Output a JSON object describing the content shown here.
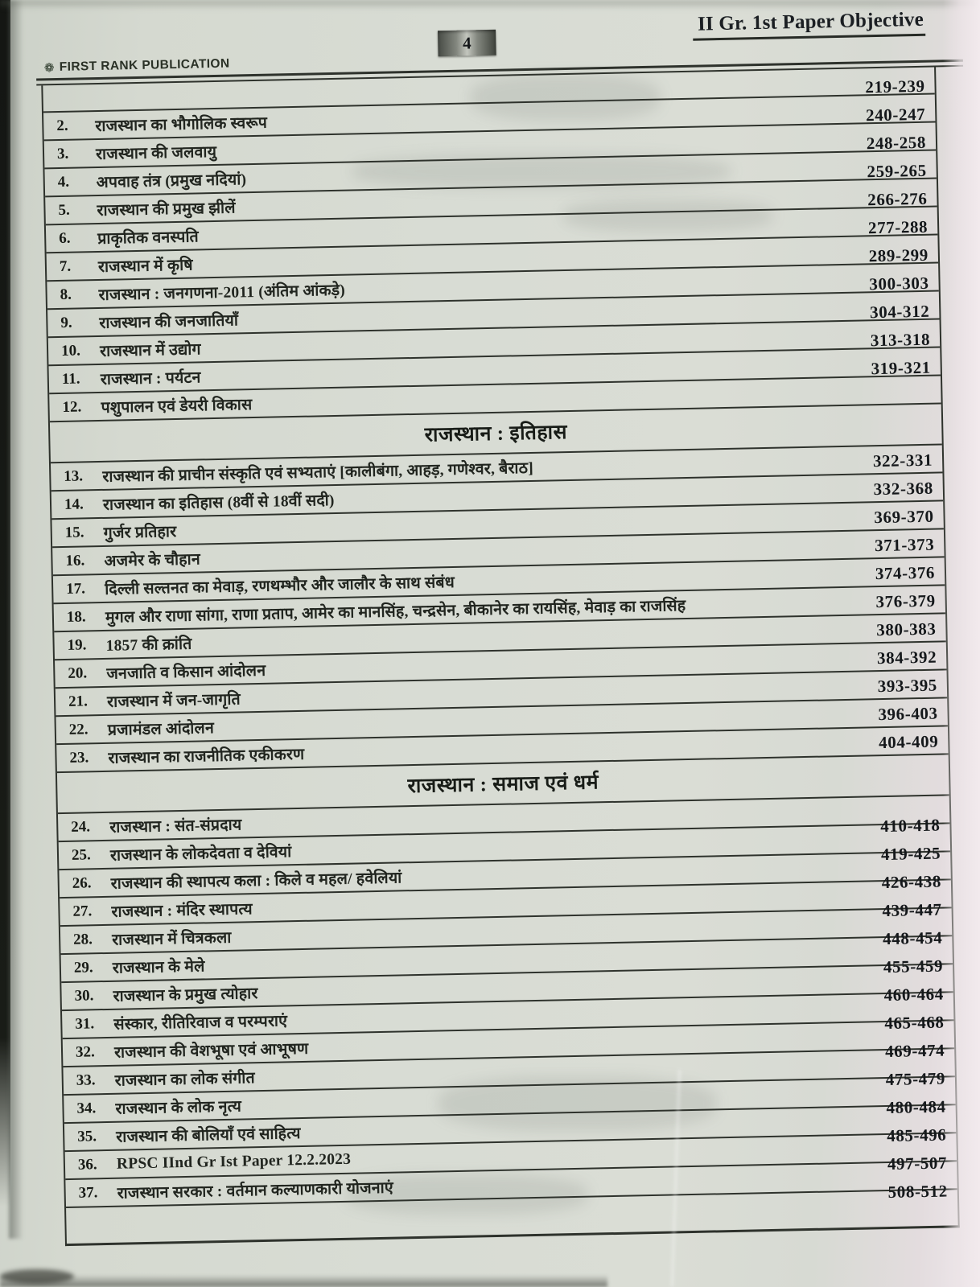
{
  "page": {
    "corner_title": "II Gr. 1st Paper Objective",
    "page_number": "4",
    "publisher": "FIRST RANK PUBLICATION"
  },
  "colors": {
    "paper": "#d8dcd4",
    "ink": "#21251f",
    "line": "#2e322c",
    "range_ink": "#15181b",
    "edge_pink": "#efe8ec",
    "edge_black": "#141613"
  },
  "toc": {
    "sections": [
      {
        "heading": "",
        "range_position": "above",
        "entries": [
          {
            "no": "2.",
            "title": "राजस्थान का भौगोलिक स्वरूप",
            "pages": "219-239"
          },
          {
            "no": "3.",
            "title": "राजस्थान की जलवायु",
            "pages": "240-247"
          },
          {
            "no": "4.",
            "title": "अपवाह तंत्र (प्रमुख नदियां)",
            "pages": "248-258"
          },
          {
            "no": "5.",
            "title": "राजस्थान की प्रमुख झीलें",
            "pages": "259-265"
          },
          {
            "no": "6.",
            "title": "प्राकृतिक वनस्पति",
            "pages": "266-276"
          },
          {
            "no": "7.",
            "title": "राजस्थान में कृषि",
            "pages": "277-288"
          },
          {
            "no": "8.",
            "title": "राजस्थान : जनगणना-2011 (अंतिम आंकड़े)",
            "pages": "289-299"
          },
          {
            "no": "9.",
            "title": "राजस्थान की जनजातियाँ",
            "pages": "300-303"
          },
          {
            "no": "10.",
            "title": "राजस्थान में उद्योग",
            "pages": "304-312"
          },
          {
            "no": "11.",
            "title": "राजस्थान : पर्यटन",
            "pages": "313-318"
          },
          {
            "no": "12.",
            "title": "पशुपालन एवं डेयरी विकास",
            "pages": "319-321"
          }
        ]
      },
      {
        "heading": "राजस्थान : इतिहास",
        "range_position": "inline",
        "entries": [
          {
            "no": "13.",
            "title": "राजस्थान की प्राचीन संस्कृति एवं सभ्यताएं [कालीबंगा, आहड़, गणेश्वर, बैराठ]",
            "pages": "322-331"
          },
          {
            "no": "14.",
            "title": "राजस्थान का इतिहास (8वीं से 18वीं सदी)",
            "pages": "332-368"
          },
          {
            "no": "15.",
            "title": "गुर्जर प्रतिहार",
            "pages": "369-370"
          },
          {
            "no": "16.",
            "title": "अजमेर के चौहान",
            "pages": "371-373"
          },
          {
            "no": "17.",
            "title": "दिल्ली सल्तनत का मेवाड़, रणथम्भौर और जालौर के साथ संबंध",
            "pages": "374-376"
          },
          {
            "no": "18.",
            "title": "मुगल और राणा सांगा, राणा प्रताप, आमेर का मानसिंह, चन्द्रसेन, बीकानेर का रायसिंह, मेवाड़ का राजसिंह",
            "pages": "376-379"
          },
          {
            "no": "19.",
            "title": "1857 की क्रांति",
            "pages": "380-383"
          },
          {
            "no": "20.",
            "title": "जनजाति व किसान आंदोलन",
            "pages": "384-392"
          },
          {
            "no": "21.",
            "title": "राजस्थान में जन-जागृति",
            "pages": "393-395"
          },
          {
            "no": "22.",
            "title": "प्रजामंडल आंदोलन",
            "pages": "396-403"
          },
          {
            "no": "23.",
            "title": "राजस्थान का राजनीतिक एकीकरण",
            "pages": "404-409"
          }
        ]
      },
      {
        "heading": "राजस्थान : समाज एवं धर्म",
        "range_position": "below",
        "entries": [
          {
            "no": "24.",
            "title": "राजस्थान : संत-संप्रदाय",
            "pages": "410-418"
          },
          {
            "no": "25.",
            "title": "राजस्थान के लोकदेवता व देवियां",
            "pages": "419-425"
          },
          {
            "no": "26.",
            "title": "राजस्थान की स्थापत्य कला : किले व महल/ हवेलियां",
            "pages": "426-438"
          },
          {
            "no": "27.",
            "title": "राजस्थान : मंदिर स्थापत्य",
            "pages": "439-447"
          },
          {
            "no": "28.",
            "title": "राजस्थान में चित्रकला",
            "pages": "448-454"
          },
          {
            "no": "29.",
            "title": "राजस्थान के मेले",
            "pages": "455-459"
          },
          {
            "no": "30.",
            "title": "राजस्थान के प्रमुख त्योहार",
            "pages": "460-464"
          },
          {
            "no": "31.",
            "title": "संस्कार, रीतिरिवाज व परम्पराएं",
            "pages": "465-468"
          },
          {
            "no": "32.",
            "title": "राजस्थान की वेशभूषा एवं आभूषण",
            "pages": "469-474"
          },
          {
            "no": "33.",
            "title": "राजस्थान का लोक संगीत",
            "pages": "475-479"
          },
          {
            "no": "34.",
            "title": "राजस्थान के लोक नृत्य",
            "pages": "480-484"
          },
          {
            "no": "35.",
            "title": "राजस्थान की बोलियाँ एवं साहित्य",
            "pages": "485-496"
          },
          {
            "no": "36.",
            "title": "RPSC IInd Gr Ist Paper 12.2.2023",
            "pages": "497-507"
          },
          {
            "no": "37.",
            "title": "राजस्थान सरकार : वर्तमान कल्याणकारी योजनाएं",
            "pages": "508-512"
          }
        ]
      }
    ]
  }
}
